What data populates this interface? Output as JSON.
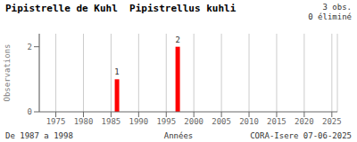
{
  "chart_data": {
    "type": "bar",
    "title": "Pipistrelle de Kuhl  Pipistrellus kuhli",
    "x_label": "Années",
    "y_label": "Observations",
    "annotations": [
      "3 obs.\n0 éliminé",
      "De 1987 a 1998",
      "CORA-Isere 07-06-2025"
    ],
    "x": [
      1986,
      1997
    ],
    "values": [
      1,
      2
    ],
    "color": "#ff0000",
    "xlim": [
      1972,
      2026
    ],
    "xticks": [
      1975,
      1980,
      1985,
      1990,
      1995,
      2000,
      2005,
      2010,
      2015,
      2020,
      2025
    ],
    "ylim": [
      0,
      2.4
    ],
    "yticks": [
      0,
      2
    ],
    "grid": "x",
    "data_labels": true
  }
}
